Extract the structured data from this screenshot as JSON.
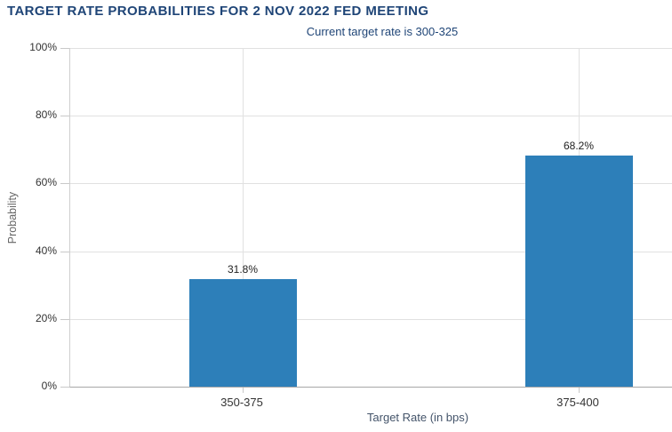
{
  "page": {
    "title": "TARGET RATE PROBABILITIES FOR 2 NOV 2022 FED MEETING",
    "subtitle": "Current target rate is 300-325"
  },
  "chart_data": {
    "type": "bar",
    "title": "TARGET RATE PROBABILITIES FOR 2 NOV 2022 FED MEETING",
    "subtitle": "Current target rate is 300-325",
    "categories": [
      "350-375",
      "375-400"
    ],
    "values": [
      31.8,
      68.2
    ],
    "value_labels": [
      "31.8%",
      "68.2%"
    ],
    "xlabel": "Target Rate (in bps)",
    "ylabel": "Probability",
    "ylim": [
      0,
      100
    ],
    "yticks": [
      0,
      20,
      40,
      60,
      80,
      100
    ],
    "ytick_labels": [
      "0%",
      "20%",
      "40%",
      "60%",
      "80%",
      "100%"
    ],
    "grid": "horizontal gridlines every 20% plus one vertical gridline at each category center",
    "legend": "none",
    "colors": {
      "bar_fill": "#2d7fb9",
      "title_text": "#1f4577",
      "axis_tick_text": "#333333",
      "value_label_text": "#222222",
      "gridline": "#e1e1e1",
      "axis_line": "#a8a8a8",
      "background": "#ffffff"
    }
  }
}
